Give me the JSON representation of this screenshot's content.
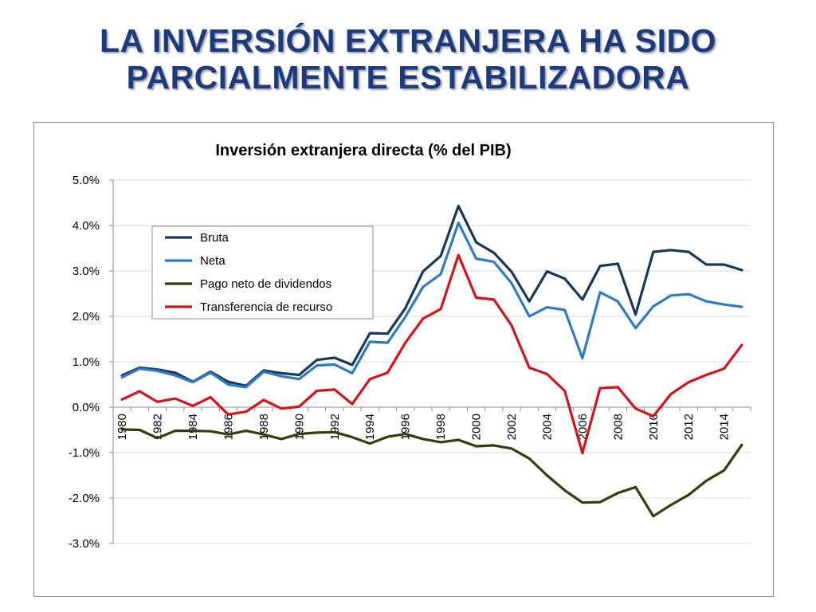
{
  "slide": {
    "title_line1": "LA INVERSIÓN EXTRANJERA HA SIDO",
    "title_line2": "PARCIALMENTE ESTABILIZADORA"
  },
  "chart_data": {
    "type": "line",
    "title": "Inversión extranjera directa (% del PIB)",
    "xlabel": "",
    "ylabel": "",
    "x": [
      1980,
      1981,
      1982,
      1983,
      1984,
      1985,
      1986,
      1987,
      1988,
      1989,
      1990,
      1991,
      1992,
      1993,
      1994,
      1995,
      1996,
      1997,
      1998,
      1999,
      2000,
      2001,
      2002,
      2003,
      2004,
      2005,
      2006,
      2007,
      2008,
      2009,
      2010,
      2011,
      2012,
      2013,
      2014,
      2015
    ],
    "x_tick_labels": [
      "1980",
      "1982",
      "1984",
      "1986",
      "1988",
      "1990",
      "1992",
      "1994",
      "1996",
      "1998",
      "2000",
      "2002",
      "2004",
      "2006",
      "2008",
      "2010",
      "2012",
      "2014"
    ],
    "y_tick_labels": [
      "5.0%",
      "4.0%",
      "3.0%",
      "2.0%",
      "1.0%",
      "0.0%",
      "-1.0%",
      "-2.0%",
      "-3.0%"
    ],
    "ylim": [
      -3.0,
      5.0
    ],
    "grid": true,
    "legend_position": "upper-left",
    "series": [
      {
        "name": "Bruta",
        "color": "#17375e",
        "values": [
          0.7,
          0.87,
          0.83,
          0.76,
          0.56,
          0.78,
          0.56,
          0.47,
          0.81,
          0.75,
          0.71,
          1.04,
          1.09,
          0.93,
          1.63,
          1.62,
          2.18,
          2.99,
          3.33,
          4.43,
          3.63,
          3.4,
          2.98,
          2.33,
          2.99,
          2.83,
          2.37,
          3.11,
          3.16,
          2.04,
          3.42,
          3.46,
          3.42,
          3.14,
          3.14,
          3.02
        ]
      },
      {
        "name": "Neta",
        "color": "#2e7bc4",
        "values": [
          0.66,
          0.85,
          0.8,
          0.7,
          0.55,
          0.76,
          0.5,
          0.44,
          0.78,
          0.68,
          0.62,
          0.92,
          0.94,
          0.75,
          1.44,
          1.42,
          1.99,
          2.65,
          2.93,
          4.06,
          3.27,
          3.2,
          2.73,
          2.0,
          2.2,
          2.14,
          1.08,
          2.53,
          2.33,
          1.74,
          2.22,
          2.46,
          2.49,
          2.33,
          2.26,
          2.21
        ]
      },
      {
        "name": "Pago neto de dividendos",
        "color": "#3b3a0c",
        "values": [
          -0.49,
          -0.5,
          -0.68,
          -0.52,
          -0.52,
          -0.53,
          -0.6,
          -0.52,
          -0.6,
          -0.7,
          -0.59,
          -0.56,
          -0.55,
          -0.66,
          -0.8,
          -0.65,
          -0.59,
          -0.7,
          -0.77,
          -0.72,
          -0.86,
          -0.84,
          -0.91,
          -1.13,
          -1.5,
          -1.83,
          -2.1,
          -2.09,
          -1.89,
          -1.76,
          -2.4,
          -2.15,
          -1.93,
          -1.62,
          -1.39,
          -0.83
        ]
      },
      {
        "name": "Transferencia de recurso",
        "color": "#d0141a",
        "values": [
          0.17,
          0.35,
          0.12,
          0.19,
          0.03,
          0.22,
          -0.16,
          -0.1,
          0.16,
          -0.03,
          0.01,
          0.36,
          0.39,
          0.07,
          0.62,
          0.76,
          1.42,
          1.95,
          2.16,
          3.35,
          2.41,
          2.37,
          1.8,
          0.87,
          0.73,
          0.36,
          -1.01,
          0.42,
          0.44,
          -0.03,
          -0.2,
          0.29,
          0.55,
          0.71,
          0.85,
          1.37
        ]
      }
    ]
  }
}
